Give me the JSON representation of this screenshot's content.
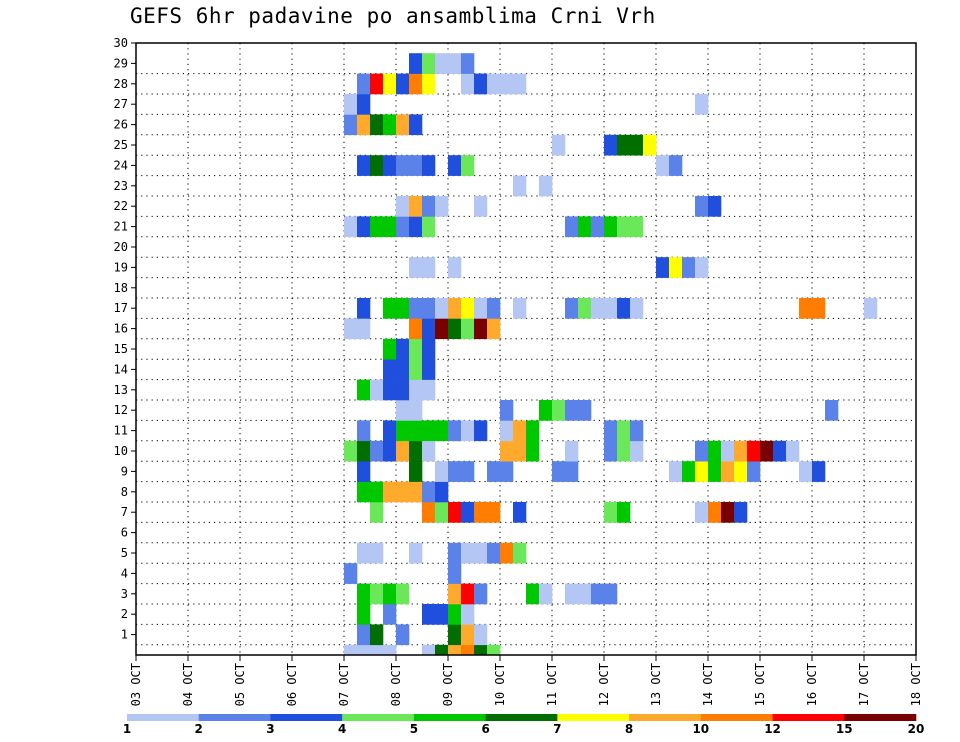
{
  "chart_data": {
    "type": "heatmap",
    "title": "GEFS 6hr padavine po ansamblima Crni Vrh",
    "x_tick_labels": [
      "03 OCT",
      "04 OCT",
      "05 OCT",
      "06 OCT",
      "07 OCT",
      "08 OCT",
      "09 OCT",
      "10 OCT",
      "11 OCT",
      "12 OCT",
      "13 OCT",
      "14 OCT",
      "15 OCT",
      "16 OCT",
      "17 OCT",
      "18 OCT"
    ],
    "x_range_days": [
      0,
      15
    ],
    "y_tick_labels": [
      "1",
      "2",
      "3",
      "4",
      "5",
      "6",
      "7",
      "8",
      "9",
      "10",
      "11",
      "12",
      "13",
      "14",
      "15",
      "16",
      "17",
      "18",
      "19",
      "20",
      "21",
      "22",
      "23",
      "24",
      "25",
      "26",
      "27",
      "28",
      "29",
      "30"
    ],
    "y_range": [
      0,
      30
    ],
    "grid": true,
    "grid_style": "dotted",
    "legend": {
      "placement": "bottom",
      "labels": [
        "1",
        "2",
        "3",
        "4",
        "5",
        "6",
        "7",
        "8",
        "10",
        "12",
        "15",
        "20"
      ],
      "colors": [
        "#b4c6f4",
        "#5a82e8",
        "#1f4fdc",
        "#6ae85a",
        "#00c800",
        "#006e00",
        "#ffff00",
        "#ffaa2d",
        "#ff7d00",
        "#ff0000",
        "#780000"
      ]
    },
    "cells": [
      [
        4.0,
        0,
        0
      ],
      [
        4.25,
        0,
        0
      ],
      [
        4.5,
        0,
        0
      ],
      [
        4.75,
        0,
        0
      ],
      [
        5.5,
        0,
        0
      ],
      [
        5.75,
        0,
        5
      ],
      [
        6.0,
        0,
        7
      ],
      [
        6.25,
        0,
        8
      ],
      [
        6.5,
        0,
        5
      ],
      [
        6.75,
        0,
        3
      ],
      [
        4.25,
        1,
        1
      ],
      [
        4.5,
        1,
        5
      ],
      [
        5.0,
        1,
        1
      ],
      [
        6.0,
        1,
        5
      ],
      [
        6.25,
        1,
        7
      ],
      [
        6.5,
        1,
        0
      ],
      [
        4.25,
        2,
        4
      ],
      [
        4.75,
        2,
        1
      ],
      [
        5.5,
        2,
        2
      ],
      [
        5.75,
        2,
        2
      ],
      [
        6.0,
        2,
        4
      ],
      [
        6.25,
        2,
        0
      ],
      [
        4.25,
        3,
        4
      ],
      [
        4.5,
        3,
        3
      ],
      [
        4.75,
        3,
        4
      ],
      [
        5.0,
        3,
        3
      ],
      [
        6.0,
        3,
        7
      ],
      [
        6.25,
        3,
        9
      ],
      [
        6.5,
        3,
        1
      ],
      [
        7.5,
        3,
        4
      ],
      [
        7.75,
        3,
        0
      ],
      [
        8.25,
        3,
        0
      ],
      [
        8.5,
        3,
        0
      ],
      [
        8.75,
        3,
        1
      ],
      [
        9.0,
        3,
        1
      ],
      [
        4.0,
        4,
        1
      ],
      [
        6.0,
        4,
        1
      ],
      [
        4.25,
        5,
        0
      ],
      [
        4.5,
        5,
        0
      ],
      [
        5.25,
        5,
        0
      ],
      [
        6.0,
        5,
        1
      ],
      [
        6.25,
        5,
        0
      ],
      [
        6.5,
        5,
        0
      ],
      [
        6.75,
        5,
        1
      ],
      [
        7.0,
        5,
        8
      ],
      [
        7.25,
        5,
        3
      ],
      [
        4.5,
        7,
        3
      ],
      [
        5.5,
        7,
        8
      ],
      [
        5.75,
        7,
        3
      ],
      [
        6.0,
        7,
        9
      ],
      [
        6.25,
        7,
        2
      ],
      [
        6.5,
        7,
        8
      ],
      [
        6.75,
        7,
        8
      ],
      [
        7.25,
        7,
        2
      ],
      [
        9.0,
        7,
        3
      ],
      [
        9.25,
        7,
        4
      ],
      [
        10.75,
        7,
        0
      ],
      [
        11.0,
        7,
        8
      ],
      [
        11.25,
        7,
        10
      ],
      [
        11.5,
        7,
        2
      ],
      [
        4.25,
        8,
        4
      ],
      [
        4.5,
        8,
        4
      ],
      [
        4.75,
        8,
        7
      ],
      [
        5.0,
        8,
        7
      ],
      [
        5.25,
        8,
        7
      ],
      [
        5.5,
        8,
        1
      ],
      [
        5.75,
        8,
        2
      ],
      [
        4.25,
        9,
        2
      ],
      [
        5.25,
        9,
        5
      ],
      [
        5.75,
        9,
        0
      ],
      [
        6.0,
        9,
        1
      ],
      [
        6.25,
        9,
        1
      ],
      [
        6.75,
        9,
        1
      ],
      [
        7.0,
        9,
        1
      ],
      [
        8.0,
        9,
        1
      ],
      [
        8.25,
        9,
        1
      ],
      [
        10.25,
        9,
        0
      ],
      [
        10.5,
        9,
        4
      ],
      [
        10.75,
        9,
        6
      ],
      [
        11.0,
        9,
        4
      ],
      [
        11.25,
        9,
        7
      ],
      [
        11.5,
        9,
        6
      ],
      [
        11.75,
        9,
        1
      ],
      [
        12.75,
        9,
        0
      ],
      [
        13.0,
        9,
        2
      ],
      [
        4.0,
        10,
        3
      ],
      [
        4.25,
        10,
        5
      ],
      [
        4.5,
        10,
        1
      ],
      [
        4.75,
        10,
        2
      ],
      [
        5.0,
        10,
        7
      ],
      [
        5.25,
        10,
        5
      ],
      [
        5.5,
        10,
        0
      ],
      [
        7.0,
        10,
        7
      ],
      [
        7.25,
        10,
        7
      ],
      [
        7.5,
        10,
        4
      ],
      [
        8.25,
        10,
        0
      ],
      [
        9.0,
        10,
        1
      ],
      [
        9.25,
        10,
        3
      ],
      [
        9.5,
        10,
        0
      ],
      [
        10.75,
        10,
        1
      ],
      [
        11.0,
        10,
        4
      ],
      [
        11.25,
        10,
        0
      ],
      [
        11.5,
        10,
        7
      ],
      [
        11.75,
        10,
        9
      ],
      [
        12.0,
        10,
        10
      ],
      [
        12.25,
        10,
        2
      ],
      [
        12.5,
        10,
        0
      ],
      [
        4.25,
        11,
        1
      ],
      [
        4.75,
        11,
        2
      ],
      [
        5.0,
        11,
        4
      ],
      [
        5.25,
        11,
        4
      ],
      [
        5.5,
        11,
        4
      ],
      [
        5.75,
        11,
        4
      ],
      [
        6.0,
        11,
        1
      ],
      [
        6.25,
        11,
        0
      ],
      [
        6.5,
        11,
        2
      ],
      [
        7.0,
        11,
        0
      ],
      [
        7.25,
        11,
        7
      ],
      [
        7.5,
        11,
        4
      ],
      [
        9.0,
        11,
        1
      ],
      [
        9.25,
        11,
        3
      ],
      [
        9.5,
        11,
        1
      ],
      [
        5.0,
        12,
        0
      ],
      [
        5.25,
        12,
        0
      ],
      [
        7.0,
        12,
        1
      ],
      [
        7.75,
        12,
        4
      ],
      [
        8.0,
        12,
        3
      ],
      [
        8.25,
        12,
        1
      ],
      [
        8.5,
        12,
        1
      ],
      [
        13.25,
        12,
        1
      ],
      [
        4.25,
        13,
        4
      ],
      [
        4.5,
        13,
        0
      ],
      [
        4.75,
        13,
        2
      ],
      [
        5.0,
        13,
        2
      ],
      [
        5.25,
        13,
        0
      ],
      [
        5.5,
        13,
        0
      ],
      [
        4.75,
        14,
        2
      ],
      [
        5.0,
        14,
        2
      ],
      [
        5.25,
        14,
        3
      ],
      [
        5.5,
        14,
        2
      ],
      [
        4.75,
        15,
        4
      ],
      [
        5.0,
        15,
        2
      ],
      [
        5.25,
        15,
        3
      ],
      [
        5.5,
        15,
        2
      ],
      [
        4.0,
        16,
        0
      ],
      [
        4.25,
        16,
        0
      ],
      [
        5.25,
        16,
        8
      ],
      [
        5.5,
        16,
        2
      ],
      [
        5.75,
        16,
        10
      ],
      [
        6.0,
        16,
        5
      ],
      [
        6.25,
        16,
        3
      ],
      [
        6.5,
        16,
        10
      ],
      [
        6.75,
        16,
        7
      ],
      [
        4.25,
        17,
        2
      ],
      [
        4.75,
        17,
        4
      ],
      [
        5.0,
        17,
        4
      ],
      [
        5.25,
        17,
        1
      ],
      [
        5.5,
        17,
        1
      ],
      [
        5.75,
        17,
        0
      ],
      [
        6.0,
        17,
        7
      ],
      [
        6.25,
        17,
        6
      ],
      [
        6.5,
        17,
        0
      ],
      [
        6.75,
        17,
        1
      ],
      [
        7.25,
        17,
        0
      ],
      [
        8.25,
        17,
        1
      ],
      [
        8.5,
        17,
        3
      ],
      [
        8.75,
        17,
        0
      ],
      [
        9.0,
        17,
        0
      ],
      [
        9.25,
        17,
        2
      ],
      [
        9.5,
        17,
        0
      ],
      [
        12.75,
        17,
        8
      ],
      [
        13.0,
        17,
        8
      ],
      [
        14.0,
        17,
        0
      ],
      [
        5.25,
        19,
        0
      ],
      [
        5.5,
        19,
        0
      ],
      [
        6.0,
        19,
        0
      ],
      [
        10.0,
        19,
        2
      ],
      [
        10.25,
        19,
        6
      ],
      [
        10.5,
        19,
        1
      ],
      [
        10.75,
        19,
        0
      ],
      [
        4.0,
        21,
        0
      ],
      [
        4.25,
        21,
        2
      ],
      [
        4.5,
        21,
        4
      ],
      [
        4.75,
        21,
        4
      ],
      [
        5.0,
        21,
        1
      ],
      [
        5.25,
        21,
        2
      ],
      [
        5.5,
        21,
        3
      ],
      [
        8.25,
        21,
        1
      ],
      [
        8.5,
        21,
        4
      ],
      [
        8.75,
        21,
        1
      ],
      [
        9.0,
        21,
        4
      ],
      [
        9.25,
        21,
        3
      ],
      [
        9.5,
        21,
        3
      ],
      [
        5.0,
        22,
        0
      ],
      [
        5.25,
        22,
        7
      ],
      [
        5.5,
        22,
        1
      ],
      [
        5.75,
        22,
        0
      ],
      [
        6.5,
        22,
        0
      ],
      [
        10.75,
        22,
        1
      ],
      [
        11.0,
        22,
        2
      ],
      [
        7.25,
        23,
        0
      ],
      [
        7.75,
        23,
        0
      ],
      [
        4.25,
        24,
        2
      ],
      [
        4.5,
        24,
        5
      ],
      [
        4.75,
        24,
        2
      ],
      [
        5.0,
        24,
        1
      ],
      [
        5.25,
        24,
        1
      ],
      [
        5.5,
        24,
        2
      ],
      [
        6.0,
        24,
        2
      ],
      [
        6.25,
        24,
        3
      ],
      [
        10.0,
        24,
        0
      ],
      [
        10.25,
        24,
        1
      ],
      [
        8.0,
        25,
        0
      ],
      [
        9.0,
        25,
        2
      ],
      [
        9.25,
        25,
        5
      ],
      [
        9.5,
        25,
        5
      ],
      [
        9.75,
        25,
        6
      ],
      [
        4.0,
        26,
        1
      ],
      [
        4.25,
        26,
        7
      ],
      [
        4.5,
        26,
        5
      ],
      [
        4.75,
        26,
        4
      ],
      [
        5.0,
        26,
        7
      ],
      [
        5.25,
        26,
        2
      ],
      [
        4.0,
        27,
        0
      ],
      [
        4.25,
        27,
        2
      ],
      [
        10.75,
        27,
        0
      ],
      [
        4.25,
        28,
        1
      ],
      [
        4.5,
        28,
        9
      ],
      [
        4.75,
        28,
        6
      ],
      [
        5.0,
        28,
        2
      ],
      [
        5.25,
        28,
        8
      ],
      [
        5.5,
        28,
        6
      ],
      [
        6.25,
        28,
        0
      ],
      [
        6.5,
        28,
        2
      ],
      [
        6.75,
        28,
        0
      ],
      [
        7.0,
        28,
        0
      ],
      [
        7.25,
        28,
        0
      ],
      [
        5.25,
        29,
        2
      ],
      [
        5.5,
        29,
        3
      ],
      [
        5.75,
        29,
        0
      ],
      [
        6.0,
        29,
        0
      ],
      [
        6.25,
        29,
        1
      ]
    ]
  }
}
